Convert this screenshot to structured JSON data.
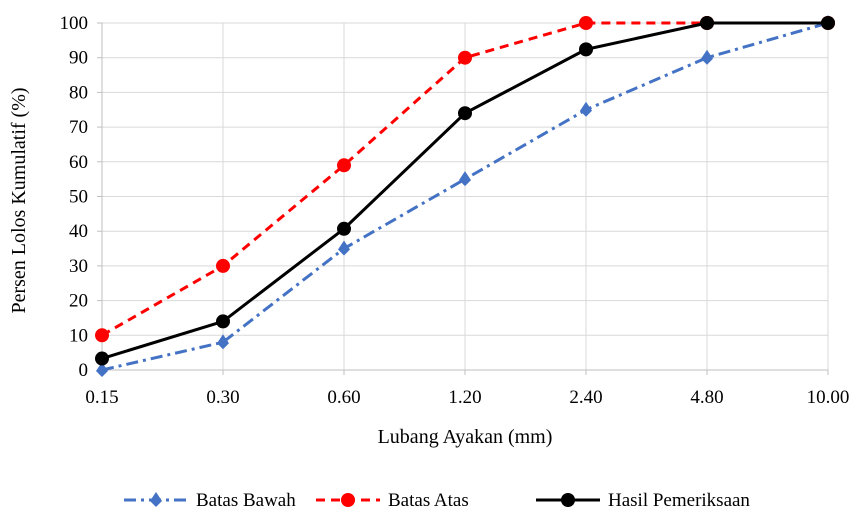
{
  "chart_data": {
    "type": "line",
    "title": "",
    "xlabel": "Lubang Ayakan (mm)",
    "ylabel": "Persen Lolos Kumulatif (%)",
    "categories": [
      "0.15",
      "0.30",
      "0.60",
      "1.20",
      "2.40",
      "4.80",
      "10.00"
    ],
    "ylim": [
      0,
      100
    ],
    "yticks": [
      0,
      10,
      20,
      30,
      40,
      50,
      60,
      70,
      80,
      90,
      100
    ],
    "grid": true,
    "legend_position": "bottom",
    "series": [
      {
        "name": "Batas Bawah",
        "values": [
          0,
          8,
          35,
          55,
          75,
          90,
          100
        ],
        "color": "#4472C4",
        "dash": "dash-dot"
      },
      {
        "name": "Batas Atas",
        "values": [
          10,
          30,
          59,
          90,
          100,
          100,
          100
        ],
        "color": "#FF0000",
        "dash": "dash"
      },
      {
        "name": "Hasil Pemeriksaan",
        "values": [
          3.3,
          14,
          40.7,
          74,
          92.4,
          100,
          100
        ],
        "color": "#000000",
        "dash": "solid"
      }
    ]
  }
}
